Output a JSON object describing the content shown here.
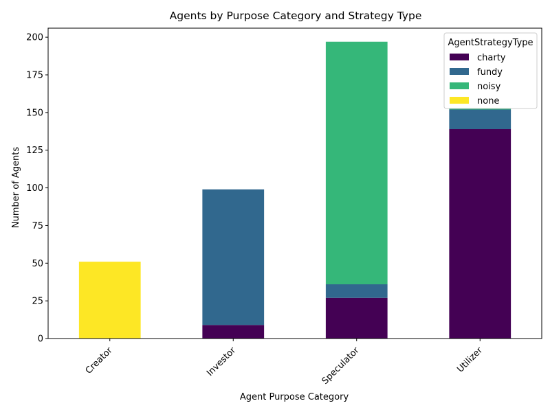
{
  "chart_data": {
    "type": "bar",
    "stacked": true,
    "title": "Agents by Purpose Category and Strategy Type",
    "xlabel": "Agent Purpose Category",
    "ylabel": "Number of Agents",
    "categories": [
      "Creator",
      "Investor",
      "Speculator",
      "Utilizer"
    ],
    "ylim": [
      0,
      206
    ],
    "yticks": [
      0,
      25,
      50,
      75,
      100,
      125,
      150,
      175,
      200
    ],
    "grid": false,
    "legend": {
      "title": "AgentStrategyType",
      "placement": "top-right"
    },
    "series": [
      {
        "name": "charty",
        "color": "#440154",
        "values": [
          0,
          9,
          27,
          139
        ]
      },
      {
        "name": "fundy",
        "color": "#31688e",
        "values": [
          0,
          90,
          9,
          13
        ]
      },
      {
        "name": "noisy",
        "color": "#35b779",
        "values": [
          0,
          0,
          161,
          1
        ]
      },
      {
        "name": "none",
        "color": "#fde725",
        "values": [
          51,
          0,
          0,
          0
        ]
      }
    ]
  }
}
